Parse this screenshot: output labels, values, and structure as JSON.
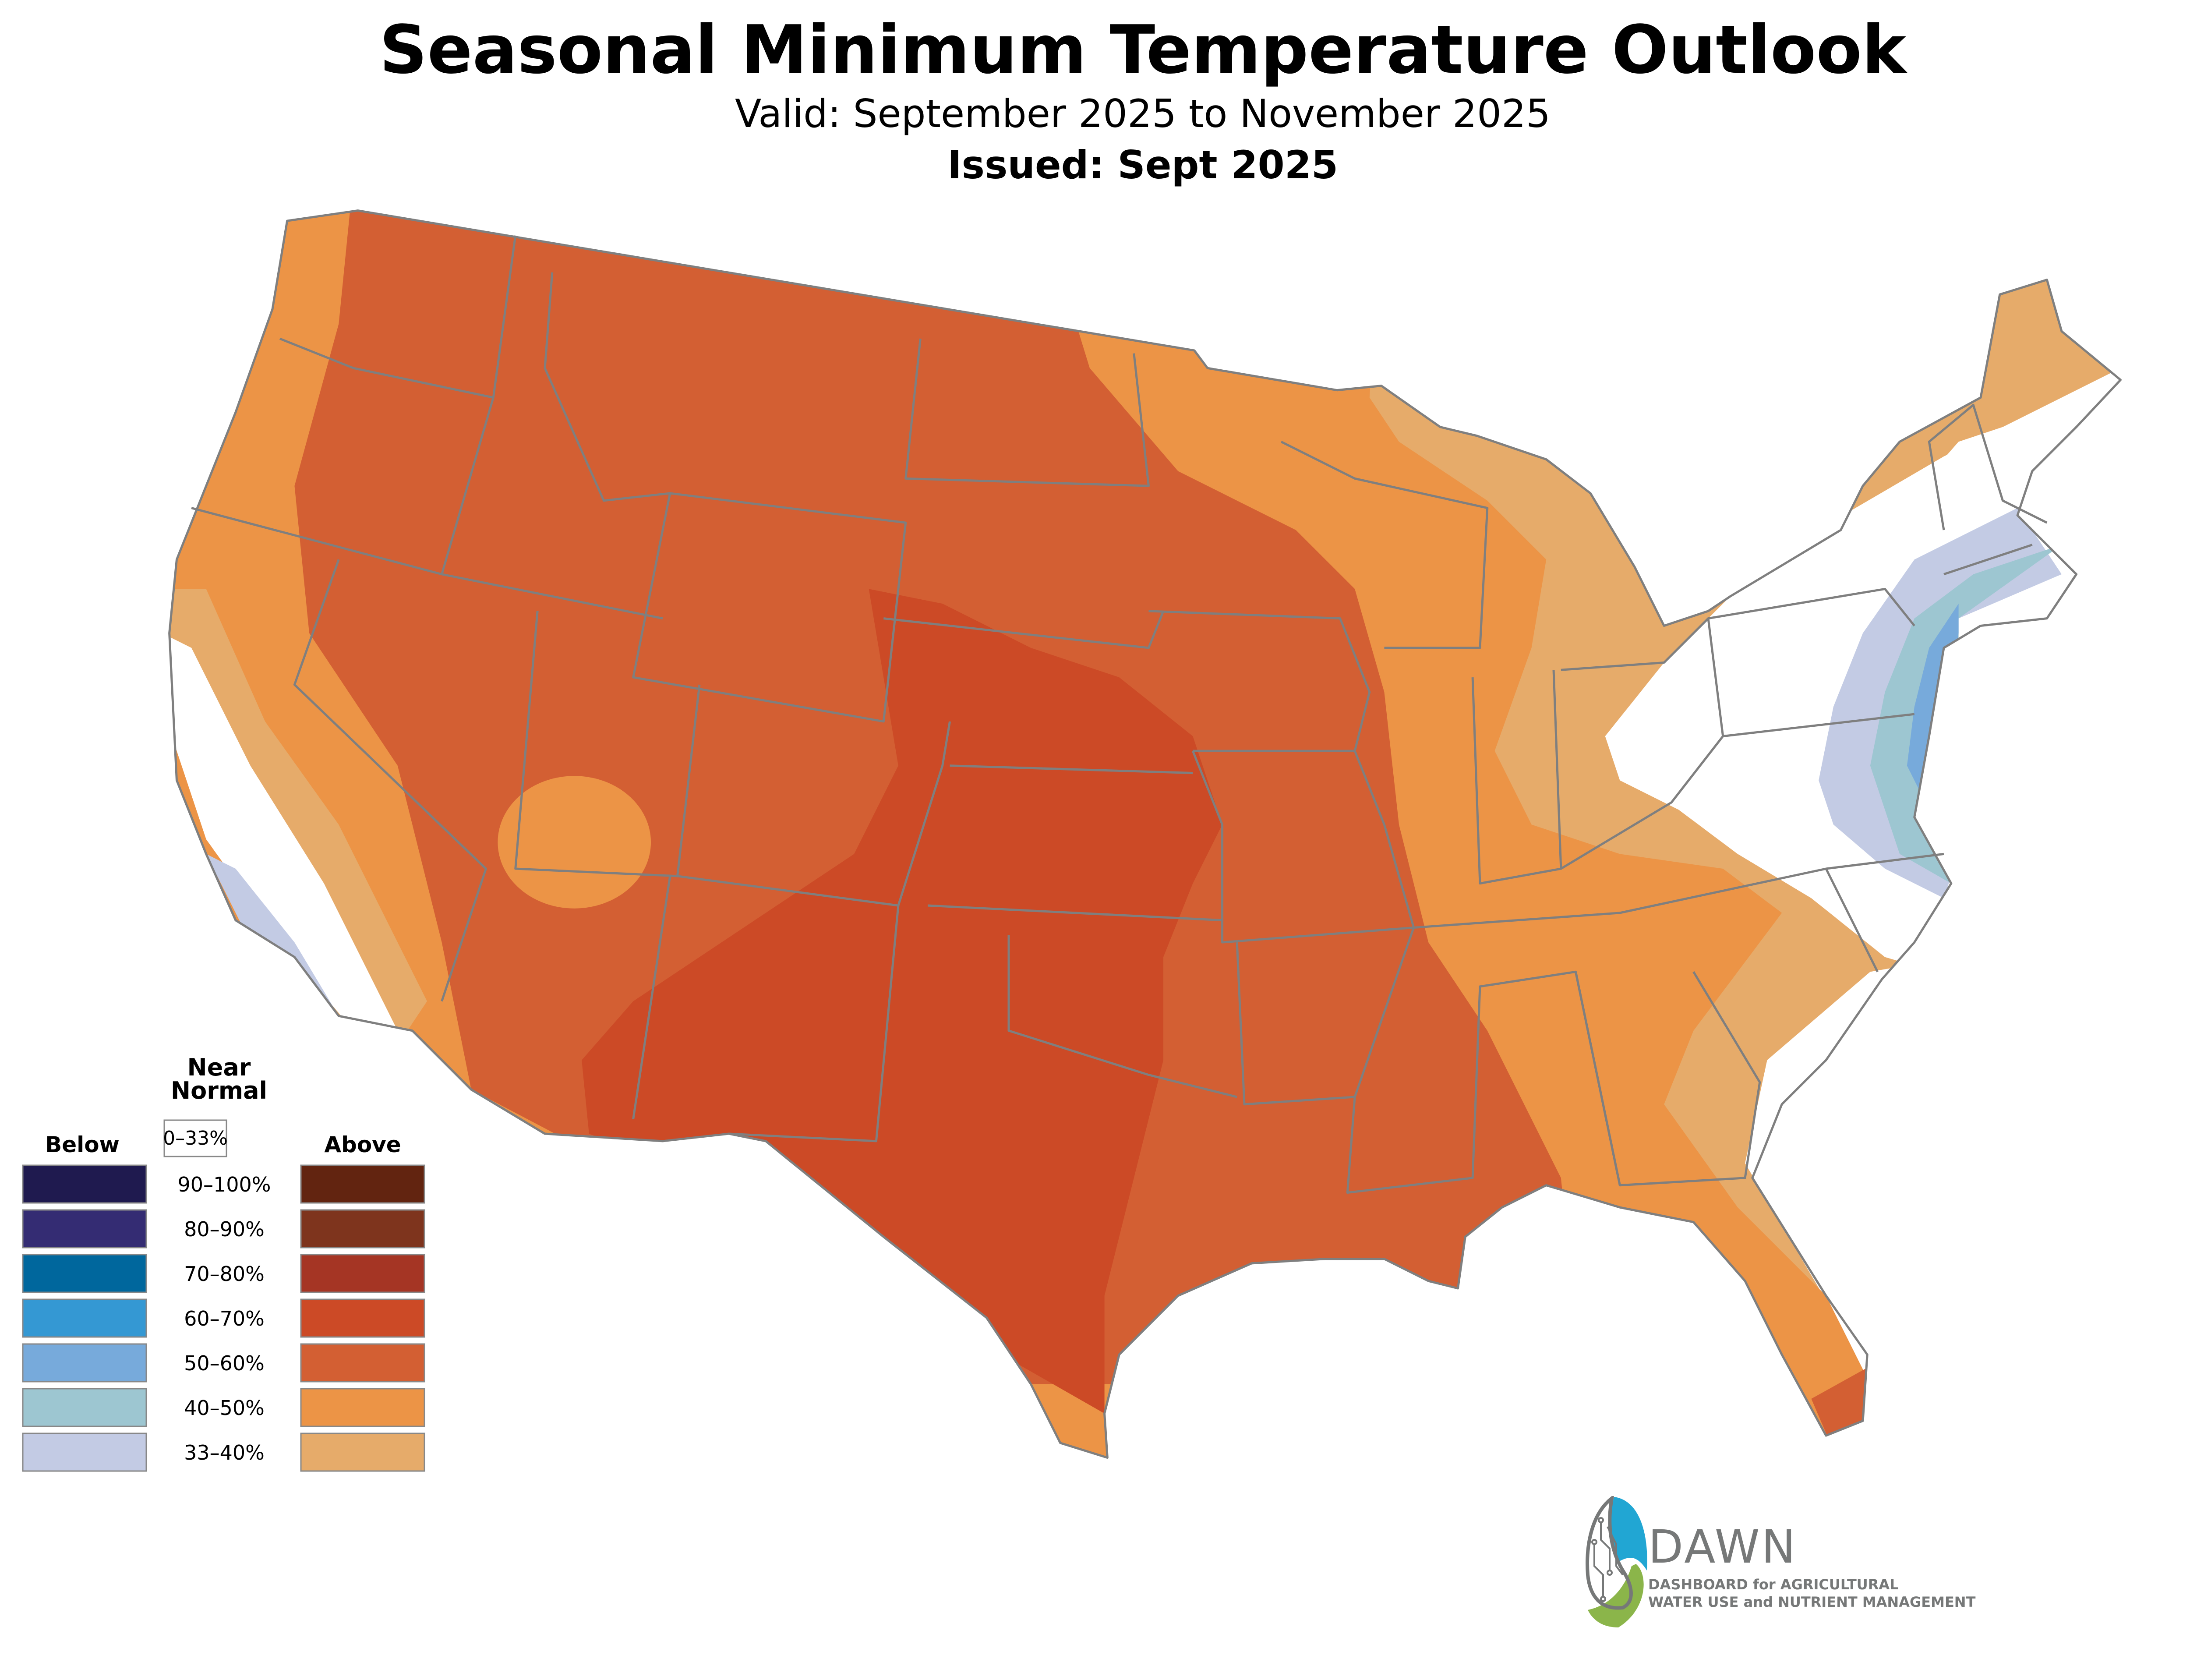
{
  "header": {
    "title": "Seasonal Minimum Temperature Outlook",
    "valid": "Valid: September 2025 to November 2025",
    "issued": "Issued: Sept 2025"
  },
  "legend": {
    "near_normal_heading": "Near Normal",
    "near_normal_range": "0–33%",
    "near_normal_color": "#ffffff",
    "below_heading": "Below",
    "above_heading": "Above",
    "rows": [
      {
        "range": "90–100%",
        "below_color": "#1f1a4f",
        "above_color": "#622410"
      },
      {
        "range": "80–90%",
        "below_color": "#342c73",
        "above_color": "#7e341d"
      },
      {
        "range": "70–80%",
        "below_color": "#00679d",
        "above_color": "#a53524"
      },
      {
        "range": "60–70%",
        "below_color": "#3498d3",
        "above_color": "#cc4a26"
      },
      {
        "range": "50–60%",
        "below_color": "#77aadb",
        "above_color": "#d35f33"
      },
      {
        "range": "40–50%",
        "below_color": "#9dc6d1",
        "above_color": "#ec9446"
      },
      {
        "range": "33–40%",
        "below_color": "#c3cbe4",
        "above_color": "#e6ab6a"
      }
    ]
  },
  "map": {
    "region": "Contiguous United States",
    "zones": [
      {
        "category": "Above",
        "probability": "60–70%",
        "area": "Central/Southern Plains, Texas, New Mexico"
      },
      {
        "category": "Above",
        "probability": "50–60%",
        "area": "Interior West, Northern Plains, Mid-Mississippi Valley, Gulf Coast, South Florida"
      },
      {
        "category": "Above",
        "probability": "40–50%",
        "area": "Pacific Northwest coast, Upper Midwest, Southeast, Florida, Southern Nevada"
      },
      {
        "category": "Above",
        "probability": "33–40%",
        "area": "California interior, Great Lakes, Ohio Valley, Carolinas, New England"
      },
      {
        "category": "Near Normal",
        "probability": "0–33%",
        "area": "Coastal California, Northeast interior, Appalachians"
      },
      {
        "category": "Below",
        "probability": "33–40%",
        "area": "Mid-Atlantic, Southern California coast"
      },
      {
        "category": "Below",
        "probability": "40–50%",
        "area": "Southern New England, Chesapeake"
      },
      {
        "category": "Below",
        "probability": "50–60%",
        "area": "New Jersey coast, Long Island, Delaware"
      }
    ]
  },
  "logo": {
    "name": "DAWN",
    "line1": "DASHBOARD for AGRICULTURAL",
    "line2": "WATER USE and NUTRIENT MANAGEMENT",
    "colors": {
      "water": "#21a6d3",
      "leaf": "#8bb54a",
      "circuit": "#767878"
    }
  }
}
